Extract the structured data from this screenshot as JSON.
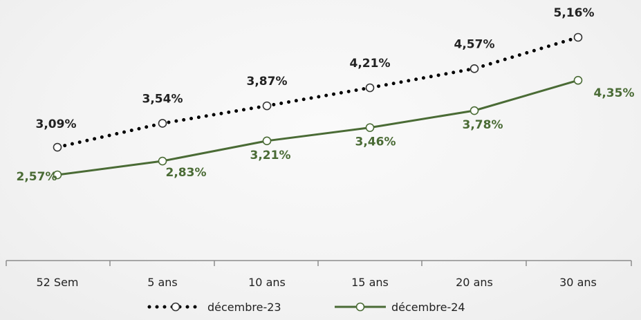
{
  "chart_data": {
    "type": "line",
    "title": "",
    "xlabel": "",
    "ylabel": "",
    "ylim": [
      2.2,
      5.3
    ],
    "grid": false,
    "legend_placement": "bottom",
    "categories": [
      "52 Sem",
      "5 ans",
      "10 ans",
      "15 ans",
      "20 ans",
      "30 ans"
    ],
    "series": [
      {
        "name": "décembre-23",
        "style": "dotted",
        "color": "#000000",
        "label_color": "#222222",
        "values": [
          3.09,
          3.54,
          3.87,
          4.21,
          4.57,
          5.16
        ],
        "labels": [
          "3,09%",
          "3,54%",
          "3,87%",
          "4,21%",
          "4,57%",
          "5,16%"
        ]
      },
      {
        "name": "décembre-24",
        "style": "solid",
        "color": "#4a6b35",
        "label_color": "#4a6b35",
        "values": [
          2.57,
          2.83,
          3.21,
          3.46,
          3.78,
          4.35
        ],
        "labels": [
          "2,57%",
          "2,83%",
          "3,21%",
          "3,46%",
          "3,78%",
          "4,35%"
        ]
      }
    ]
  }
}
